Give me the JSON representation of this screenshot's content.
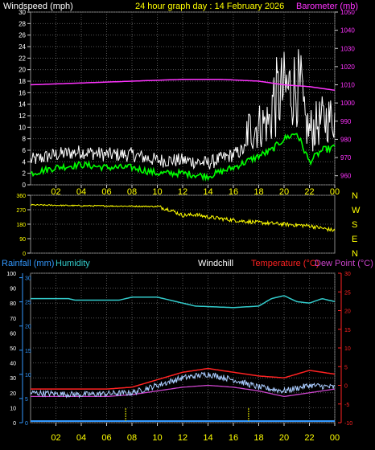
{
  "colors": {
    "wind_gust": "#ffffff",
    "wind_avg": "#00ff00",
    "barometer": "#ff33ff",
    "direction": "#ffff00",
    "rain": "#3399ff",
    "humidity": "#33cccc",
    "windchill": "#ffffff",
    "temperature": "#ff2222",
    "dewpoint": "#cc44cc",
    "axis_time": "#ffff00",
    "grid": "#555555"
  },
  "top": {
    "labels": {
      "windspeed": "Windspeed (mph)",
      "title": "24 hour graph day : 14 February 2026",
      "barometer": "Barometer (mb)"
    },
    "chart_data": {
      "type": "line",
      "wind_ticks": [
        0,
        2,
        4,
        6,
        8,
        10,
        12,
        14,
        16,
        18,
        20,
        22,
        24,
        26,
        28,
        30
      ],
      "baro_ticks": [
        960,
        970,
        980,
        990,
        1000,
        1010,
        1020,
        1030,
        1040,
        1050
      ],
      "wind_ylim": [
        0,
        30
      ],
      "baro_ylim": [
        955,
        1050
      ],
      "x_hours": [
        "02",
        "04",
        "06",
        "08",
        "10",
        "12",
        "14",
        "16",
        "18",
        "20",
        "22",
        "00"
      ],
      "barometer_points": [
        [
          0,
          1010
        ],
        [
          4,
          1011
        ],
        [
          8,
          1012
        ],
        [
          12,
          1013
        ],
        [
          15,
          1013
        ],
        [
          18,
          1012
        ],
        [
          20,
          1010
        ],
        [
          22,
          1009
        ],
        [
          24,
          1007
        ]
      ],
      "wind_avg_points": [
        [
          0,
          2
        ],
        [
          2,
          3
        ],
        [
          4,
          3.5
        ],
        [
          6,
          3
        ],
        [
          8,
          3
        ],
        [
          10,
          2
        ],
        [
          12,
          2
        ],
        [
          14,
          1.5
        ],
        [
          16,
          3
        ],
        [
          17,
          4
        ],
        [
          18,
          5
        ],
        [
          19,
          6
        ],
        [
          20,
          8
        ],
        [
          21,
          9
        ],
        [
          22,
          4
        ],
        [
          23,
          6
        ],
        [
          24,
          6.5
        ]
      ]
    }
  },
  "mid": {
    "chart_data": {
      "type": "line",
      "ticks": [
        0,
        90,
        180,
        270,
        360
      ],
      "ylim": [
        0,
        360
      ],
      "compass": [
        "N",
        "W",
        "S",
        "E",
        "N"
      ],
      "direction_points": [
        [
          0,
          300
        ],
        [
          4,
          295
        ],
        [
          8,
          292
        ],
        [
          10,
          290
        ],
        [
          11,
          270
        ],
        [
          12,
          235
        ],
        [
          13,
          240
        ],
        [
          14,
          225
        ],
        [
          16,
          205
        ],
        [
          18,
          190
        ],
        [
          20,
          180
        ],
        [
          22,
          170
        ],
        [
          24,
          140
        ]
      ]
    }
  },
  "bottom": {
    "labels": {
      "rainfall": "Rainfall (mm)",
      "humidity": "Humidity",
      "windchill": "Windchill",
      "temperature": "Temperature (°C)",
      "dewpoint": "Dew Point (°C)"
    },
    "chart_data": {
      "type": "line",
      "hum_ticks": [
        0,
        10,
        20,
        30,
        40,
        50,
        60,
        70,
        80,
        90,
        100
      ],
      "rain_ticks": [
        0,
        5,
        10,
        15,
        20,
        25,
        30
      ],
      "temp_ticks": [
        -10,
        -5,
        0,
        5,
        10,
        15,
        20,
        25,
        30
      ],
      "hum_ylim": [
        0,
        100
      ],
      "temp_ylim": [
        -10,
        30
      ],
      "x_hours": [
        "02",
        "04",
        "06",
        "08",
        "10",
        "12",
        "14",
        "16",
        "18",
        "20",
        "22",
        "00"
      ],
      "humidity_points": [
        [
          0,
          83
        ],
        [
          3,
          83
        ],
        [
          3.5,
          82
        ],
        [
          7,
          82
        ],
        [
          8,
          84
        ],
        [
          10,
          84
        ],
        [
          11,
          82
        ],
        [
          13,
          78
        ],
        [
          16,
          77
        ],
        [
          18,
          78
        ],
        [
          19,
          83
        ],
        [
          20,
          85
        ],
        [
          21,
          81
        ],
        [
          22,
          80
        ],
        [
          23,
          83
        ],
        [
          24,
          81
        ]
      ],
      "temperature_points": [
        [
          0,
          -1
        ],
        [
          3,
          -1
        ],
        [
          6,
          -1
        ],
        [
          8,
          -0.5
        ],
        [
          10,
          1.5
        ],
        [
          12,
          3.5
        ],
        [
          14,
          4.5
        ],
        [
          16,
          3.5
        ],
        [
          18,
          2.5
        ],
        [
          20,
          2
        ],
        [
          21,
          3
        ],
        [
          22,
          4
        ],
        [
          24,
          3
        ]
      ],
      "dewpoint_points": [
        [
          0,
          -3
        ],
        [
          4,
          -3
        ],
        [
          6,
          -3
        ],
        [
          8,
          -2.5
        ],
        [
          10,
          -1.5
        ],
        [
          12,
          -0.5
        ],
        [
          14,
          0
        ],
        [
          16,
          -0.5
        ],
        [
          18,
          -1.5
        ],
        [
          20,
          -3
        ],
        [
          22,
          -2
        ],
        [
          24,
          -1
        ]
      ],
      "windchill_points": [
        [
          0,
          -2
        ],
        [
          4,
          -2.5
        ],
        [
          8,
          -2
        ],
        [
          10,
          0
        ],
        [
          12,
          2
        ],
        [
          14,
          3
        ],
        [
          16,
          1.5
        ],
        [
          18,
          -0.5
        ],
        [
          20,
          -1.5
        ],
        [
          22,
          0
        ],
        [
          24,
          -0.5
        ]
      ],
      "rain_markers": [
        7.5,
        17.2
      ]
    }
  }
}
